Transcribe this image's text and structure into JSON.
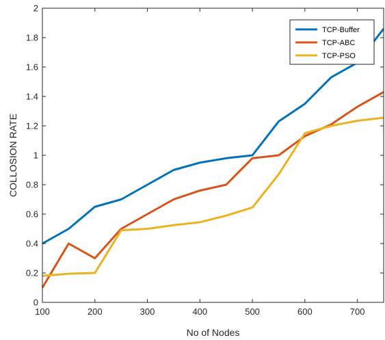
{
  "chart_data": {
    "type": "line",
    "x": [
      100,
      150,
      200,
      250,
      300,
      350,
      400,
      450,
      500,
      550,
      600,
      650,
      700,
      750
    ],
    "xlabel": "No of Nodes",
    "ylabel": "COLLOSION RATE",
    "xlim": [
      100,
      750
    ],
    "ylim": [
      0,
      2
    ],
    "xticks": [
      "100",
      "200",
      "300",
      "400",
      "500",
      "600",
      "700"
    ],
    "yticks": [
      "0",
      "0.2",
      "0.4",
      "0.6",
      "0.8",
      "1",
      "1.2",
      "1.4",
      "1.6",
      "1.8",
      "2"
    ],
    "grid": false,
    "legend_position": "top-right",
    "series": [
      {
        "name": "TCP-Buffer",
        "color": "#0072BD",
        "values": [
          0.4,
          0.5,
          0.65,
          0.7,
          0.8,
          0.9,
          0.95,
          0.98,
          1.0,
          1.23,
          1.35,
          1.53,
          1.63,
          1.86
        ]
      },
      {
        "name": "TCP-ABC",
        "color": "#D95319",
        "values": [
          0.1,
          0.4,
          0.3,
          0.5,
          0.6,
          0.7,
          0.76,
          0.8,
          0.98,
          1.0,
          1.13,
          1.21,
          1.33,
          1.43
        ]
      },
      {
        "name": "TCP-PSO",
        "color": "#EDB120",
        "values": [
          0.18,
          0.195,
          0.2,
          0.49,
          0.5,
          0.525,
          0.545,
          0.59,
          0.645,
          0.87,
          1.15,
          1.2,
          1.235,
          1.255
        ]
      }
    ]
  }
}
